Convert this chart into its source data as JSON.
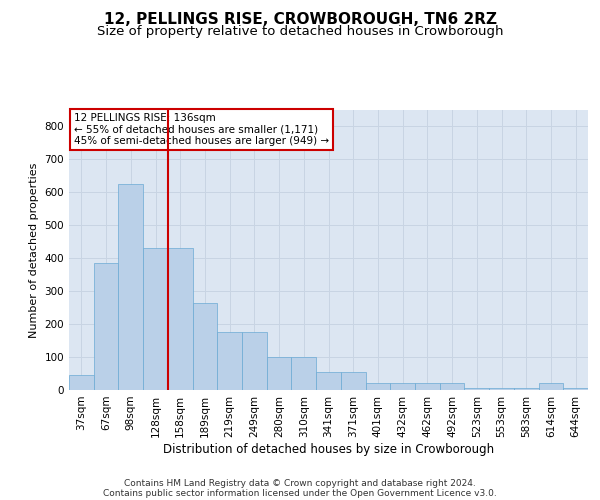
{
  "title": "12, PELLINGS RISE, CROWBOROUGH, TN6 2RZ",
  "subtitle": "Size of property relative to detached houses in Crowborough",
  "xlabel": "Distribution of detached houses by size in Crowborough",
  "ylabel": "Number of detached properties",
  "categories": [
    "37sqm",
    "67sqm",
    "98sqm",
    "128sqm",
    "158sqm",
    "189sqm",
    "219sqm",
    "249sqm",
    "280sqm",
    "310sqm",
    "341sqm",
    "371sqm",
    "401sqm",
    "432sqm",
    "462sqm",
    "492sqm",
    "523sqm",
    "553sqm",
    "583sqm",
    "614sqm",
    "644sqm"
  ],
  "values": [
    45,
    385,
    625,
    430,
    430,
    265,
    175,
    175,
    100,
    100,
    55,
    55,
    20,
    20,
    20,
    20,
    5,
    5,
    5,
    20,
    5
  ],
  "bar_color": "#bad0e8",
  "bar_edge_color": "#6aaad4",
  "background_color": "#dce6f2",
  "grid_color": "#c8d4e3",
  "vline_x": 3.5,
  "vline_color": "#cc0000",
  "annotation_text": "12 PELLINGS RISE: 136sqm\n← 55% of detached houses are smaller (1,171)\n45% of semi-detached houses are larger (949) →",
  "annotation_box_facecolor": "#ffffff",
  "annotation_box_edgecolor": "#cc0000",
  "ylim": [
    0,
    850
  ],
  "yticks": [
    0,
    100,
    200,
    300,
    400,
    500,
    600,
    700,
    800
  ],
  "footer_line1": "Contains HM Land Registry data © Crown copyright and database right 2024.",
  "footer_line2": "Contains public sector information licensed under the Open Government Licence v3.0.",
  "title_fontsize": 11,
  "subtitle_fontsize": 9.5,
  "xlabel_fontsize": 8.5,
  "ylabel_fontsize": 8,
  "tick_fontsize": 7.5,
  "footer_fontsize": 6.5,
  "annot_fontsize": 7.5
}
